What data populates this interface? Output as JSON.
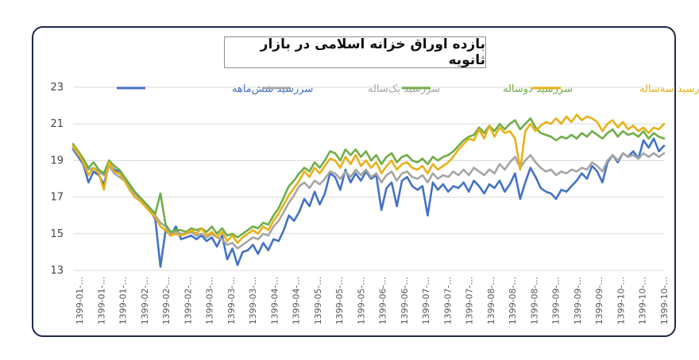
{
  "chart_data": {
    "type": "line",
    "title": "بازده اوراق خزانه اسلامی در بازار ثانویه",
    "ylim": [
      13,
      23
    ],
    "yticks": [
      13,
      15,
      17,
      19,
      21,
      23
    ],
    "grid": "horizontal",
    "legend_position": "top",
    "x_tick_labels": [
      "1399-01-...",
      "1399-01-...",
      "1399-01-...",
      "1399-02-...",
      "1399-02-...",
      "1399-02-...",
      "1399-03-...",
      "1399-03-...",
      "1399-03-...",
      "1399-04-...",
      "1399-04-...",
      "1399-05-...",
      "1399-05-...",
      "1399-05-...",
      "1399-06-...",
      "1399-06-...",
      "1399-07-...",
      "1399-07-...",
      "1399-07-...",
      "1399-08-...",
      "1399-08-...",
      "1399-08-...",
      "1399-09-...",
      "1399-09-...",
      "1399-09-...",
      "1399-10-...",
      "1399-10-...",
      "1399-10-..."
    ],
    "series": [
      {
        "name": "سررسید شش‌ماهه",
        "color": "#4472c4",
        "values": [
          19.6,
          19.2,
          18.8,
          17.8,
          18.4,
          18.2,
          17.7,
          18.8,
          18.5,
          18.4,
          18.0,
          17.6,
          17.3,
          17.0,
          16.6,
          16.3,
          15.8,
          13.2,
          15.2,
          14.9,
          15.4,
          14.7,
          14.8,
          14.9,
          14.7,
          14.9,
          14.6,
          14.8,
          14.3,
          14.9,
          13.6,
          14.2,
          13.3,
          14.0,
          14.1,
          14.4,
          13.9,
          14.5,
          14.1,
          14.7,
          14.6,
          15.2,
          16.0,
          15.7,
          16.2,
          16.9,
          16.5,
          17.3,
          16.6,
          17.2,
          18.3,
          18.1,
          17.4,
          18.5,
          17.8,
          18.3,
          17.9,
          18.4,
          18.0,
          18.2,
          16.3,
          17.5,
          17.8,
          16.5,
          17.9,
          18.1,
          17.6,
          17.4,
          17.6,
          16.0,
          17.8,
          17.4,
          17.7,
          17.3,
          17.6,
          17.5,
          17.8,
          17.3,
          17.9,
          17.6,
          17.2,
          17.7,
          17.5,
          17.9,
          17.3,
          17.7,
          18.3,
          16.9,
          17.8,
          18.6,
          18.1,
          17.5,
          17.3,
          17.2,
          16.9,
          17.4,
          17.3,
          17.6,
          17.9,
          18.3,
          18.0,
          18.7,
          18.4,
          17.8,
          18.9,
          19.3,
          18.9,
          19.4,
          19.2,
          19.5,
          19.1,
          20.1,
          19.7,
          20.2,
          19.5,
          19.8
        ]
      },
      {
        "name": "سررسید یک‌ساله",
        "color": "#a5a5a5",
        "values": [
          19.7,
          19.3,
          19.0,
          18.5,
          18.6,
          18.4,
          18.2,
          18.7,
          18.3,
          18.1,
          17.9,
          17.5,
          17.2,
          16.9,
          16.6,
          16.3,
          16.0,
          15.6,
          15.4,
          15.0,
          15.1,
          15.0,
          15.0,
          15.1,
          14.9,
          15.0,
          14.8,
          15.0,
          14.8,
          14.7,
          14.4,
          14.5,
          14.2,
          14.4,
          14.6,
          14.8,
          14.7,
          15.0,
          14.9,
          15.4,
          15.7,
          16.2,
          16.7,
          17.1,
          17.6,
          17.8,
          17.5,
          17.9,
          17.7,
          18.0,
          18.4,
          18.3,
          18.0,
          18.4,
          18.1,
          18.5,
          18.2,
          18.5,
          18.1,
          18.3,
          17.8,
          18.2,
          18.4,
          17.9,
          18.3,
          18.4,
          18.1,
          18.0,
          18.2,
          17.8,
          18.3,
          18.0,
          18.2,
          18.1,
          18.4,
          18.2,
          18.5,
          18.2,
          18.6,
          18.4,
          18.2,
          18.5,
          18.3,
          18.8,
          18.5,
          18.9,
          19.2,
          18.6,
          19.0,
          19.3,
          18.9,
          18.6,
          18.4,
          18.5,
          18.2,
          18.4,
          18.3,
          18.5,
          18.4,
          18.6,
          18.5,
          18.9,
          18.7,
          18.4,
          19.0,
          19.3,
          19.0,
          19.4,
          19.2,
          19.3,
          19.1,
          19.4,
          19.2,
          19.4,
          19.2,
          19.4
        ]
      },
      {
        "name": "سررسید دوساله",
        "color": "#70ad47",
        "values": [
          19.9,
          19.5,
          19.1,
          18.6,
          18.9,
          18.5,
          18.3,
          19.0,
          18.7,
          18.5,
          18.1,
          17.7,
          17.3,
          17.0,
          16.7,
          16.4,
          16.1,
          17.2,
          15.5,
          15.1,
          15.2,
          15.2,
          15.1,
          15.3,
          15.2,
          15.3,
          15.1,
          15.4,
          15.0,
          15.3,
          14.9,
          15.0,
          14.8,
          15.0,
          15.2,
          15.4,
          15.3,
          15.6,
          15.5,
          16.0,
          16.4,
          17.0,
          17.6,
          17.9,
          18.3,
          18.6,
          18.4,
          18.9,
          18.6,
          19.0,
          19.5,
          19.4,
          19.0,
          19.6,
          19.3,
          19.6,
          19.2,
          19.5,
          19.0,
          19.3,
          18.8,
          19.2,
          19.4,
          18.9,
          19.2,
          19.3,
          19.0,
          18.9,
          19.1,
          18.8,
          19.2,
          19.0,
          19.2,
          19.3,
          19.5,
          19.8,
          20.1,
          20.3,
          20.4,
          20.8,
          20.5,
          20.9,
          20.6,
          21.0,
          20.7,
          21.0,
          21.2,
          20.7,
          21.0,
          21.3,
          20.8,
          20.5,
          20.4,
          20.3,
          20.1,
          20.3,
          20.2,
          20.4,
          20.2,
          20.5,
          20.3,
          20.6,
          20.4,
          20.2,
          20.5,
          20.7,
          20.3,
          20.6,
          20.4,
          20.5,
          20.3,
          20.6,
          20.2,
          20.5,
          20.3,
          20.2
        ]
      },
      {
        "name": "سررسید سه‌ساله",
        "color": "#e6b118",
        "values": [
          19.8,
          19.4,
          18.9,
          18.2,
          18.6,
          18.3,
          17.4,
          18.9,
          18.4,
          18.3,
          17.9,
          17.4,
          17.0,
          16.8,
          16.5,
          16.2,
          15.9,
          15.4,
          15.2,
          14.9,
          15.0,
          14.9,
          15.0,
          15.2,
          15.0,
          15.3,
          14.9,
          15.1,
          14.8,
          15.1,
          14.6,
          14.9,
          14.5,
          14.8,
          15.0,
          15.2,
          15.0,
          15.4,
          15.2,
          15.7,
          16.1,
          16.6,
          17.1,
          17.5,
          17.9,
          18.4,
          18.1,
          18.6,
          18.3,
          18.7,
          19.1,
          19.0,
          18.6,
          19.2,
          18.8,
          19.3,
          18.7,
          19.0,
          18.6,
          18.9,
          18.3,
          18.7,
          19.0,
          18.5,
          18.8,
          18.9,
          18.6,
          18.5,
          18.7,
          18.3,
          18.8,
          18.5,
          18.7,
          18.9,
          19.2,
          19.6,
          19.9,
          20.2,
          20.1,
          20.7,
          20.2,
          20.9,
          20.3,
          20.8,
          20.5,
          20.6,
          20.2,
          18.5,
          20.6,
          21.0,
          20.6,
          20.9,
          21.1,
          21.0,
          21.3,
          21.0,
          21.4,
          21.1,
          21.5,
          21.2,
          21.4,
          21.3,
          21.1,
          20.6,
          21.0,
          21.2,
          20.8,
          21.1,
          20.7,
          20.9,
          20.6,
          20.8,
          20.5,
          20.8,
          20.7,
          21.0
        ]
      }
    ]
  }
}
